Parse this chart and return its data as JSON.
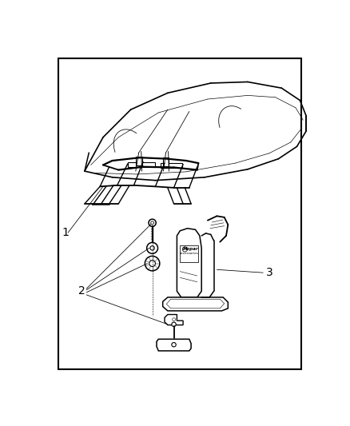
{
  "background_color": "#ffffff",
  "border_color": "#000000",
  "border_linewidth": 1.5,
  "fig_width": 4.38,
  "fig_height": 5.33,
  "dpi": 100,
  "label1_text": "1",
  "label2_text": "2",
  "label3_text": "3",
  "line_color": "#000000",
  "gray_color": "#888888",
  "lw": 0.8
}
